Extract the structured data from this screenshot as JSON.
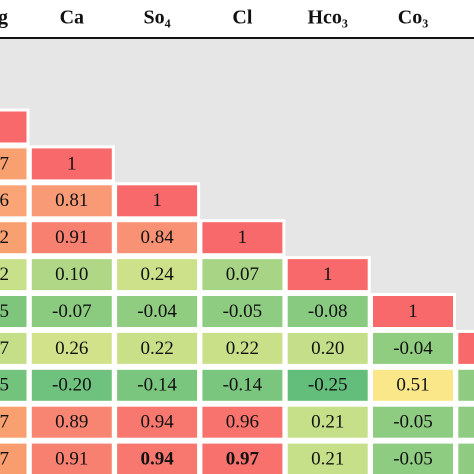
{
  "table": {
    "header": [
      "g",
      "Ca",
      "So₄",
      "Cl",
      "Hco₃",
      "Co₃"
    ],
    "rows": [
      [
        "7",
        "1"
      ],
      [
        "6",
        "0.81",
        "1"
      ],
      [
        "2",
        "0.91",
        "0.84",
        "1"
      ],
      [
        "2",
        "0.10",
        "0.24",
        "0.07",
        "1"
      ],
      [
        "5",
        "-0.07",
        "-0.04",
        "-0.05",
        "-0.08",
        "1"
      ],
      [
        "7",
        "0.26",
        "0.22",
        "0.22",
        "0.20",
        "-0.04"
      ],
      [
        "5",
        "-0.20",
        "-0.14",
        "-0.14",
        "-0.25",
        "0.51"
      ],
      [
        "7",
        "0.89",
        "0.94",
        "0.96",
        "0.21",
        "-0.05"
      ],
      [
        "7",
        "0.91",
        "0.94",
        "0.97",
        "0.21",
        "-0.05"
      ]
    ]
  }
}
